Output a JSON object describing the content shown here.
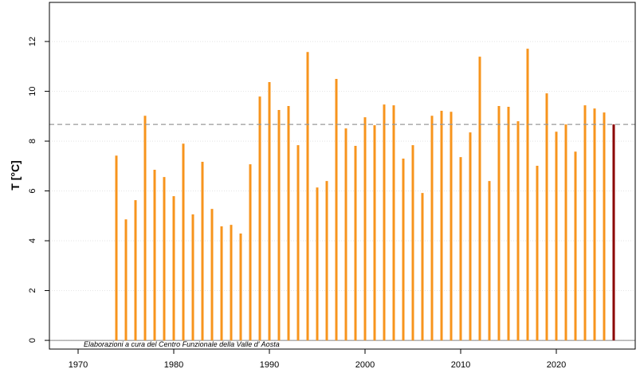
{
  "chart_data": {
    "type": "bar",
    "y_label": "T [°C]",
    "annotation": "Elaborazioni a cura del Centro Funzionale della Valle d' Aosta",
    "series": [
      {
        "color": "#f7941d",
        "x": [
          1974,
          1975,
          1976,
          1977,
          1978,
          1979,
          1980,
          1981,
          1982,
          1983,
          1984,
          1985,
          1986,
          1987,
          1988,
          1989,
          1990,
          1991,
          1992,
          1993,
          1994,
          1995,
          1996,
          1997,
          1998,
          1999,
          2000,
          2001,
          2002,
          2003,
          2004,
          2005,
          2006,
          2007,
          2008,
          2009,
          2010,
          2011,
          2012,
          2013,
          2014,
          2015,
          2016,
          2017,
          2018,
          2019,
          2020,
          2021,
          2022,
          2023,
          2024,
          2025
        ],
        "values": [
          7.42,
          4.86,
          5.63,
          9.02,
          6.85,
          6.56,
          5.79,
          7.9,
          5.06,
          7.17,
          5.28,
          4.58,
          4.64,
          4.29,
          7.07,
          9.79,
          10.37,
          9.25,
          9.41,
          7.84,
          11.58,
          6.14,
          6.4,
          10.5,
          8.51,
          7.81,
          8.96,
          8.64,
          9.47,
          9.44,
          7.3,
          7.84,
          5.92,
          9.02,
          9.22,
          9.18,
          7.36,
          8.35,
          11.39,
          6.4,
          9.41,
          9.38,
          8.8,
          11.71,
          7.01,
          9.92,
          8.38,
          8.67,
          7.58,
          9.44,
          9.31,
          9.15
        ]
      },
      {
        "color": "#8b0000",
        "x": [
          2026
        ],
        "values": [
          8.67
        ]
      }
    ],
    "reference_line": 8.67,
    "reference_color": "#999999",
    "xlim": [
      1967,
      2028.25
    ],
    "xticks": [
      1970,
      1980,
      1990,
      2000,
      2010,
      2020
    ],
    "ylim": [
      -0.35,
      13.57
    ],
    "yticks": [
      0,
      2,
      4,
      6,
      8,
      10,
      12
    ],
    "grid": true
  }
}
